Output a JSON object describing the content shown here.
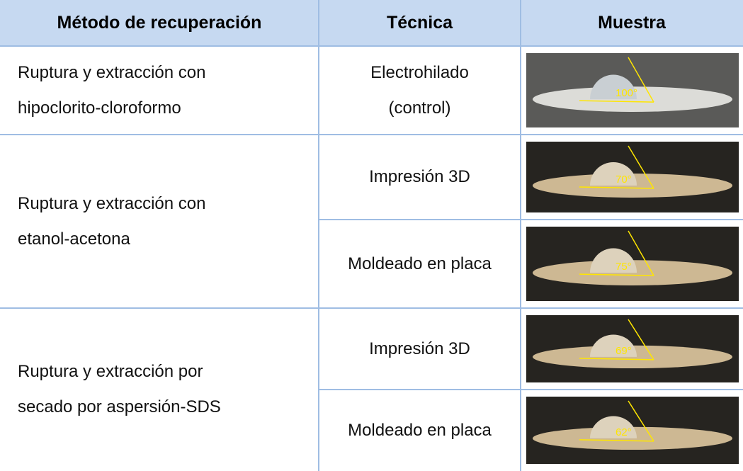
{
  "table": {
    "header": [
      "Método de recuperación",
      "Técnica",
      "Muestra"
    ],
    "rows": [
      {
        "method": [
          "Ruptura y extracción con",
          "hipoclorito-cloroformo"
        ],
        "samples": [
          {
            "technique": [
              "Electrohilado",
              "(control)"
            ],
            "angle": "100°"
          }
        ]
      },
      {
        "method": [
          "Ruptura y extracción con",
          "etanol-acetona"
        ],
        "samples": [
          {
            "technique": [
              "Impresión 3D"
            ],
            "angle": "70°"
          },
          {
            "technique": [
              "Moldeado en placa"
            ],
            "angle": "75°"
          }
        ]
      },
      {
        "method": [
          "Ruptura y extracción por",
          "secado por aspersión-SDS"
        ],
        "samples": [
          {
            "technique": [
              "Impresión 3D"
            ],
            "angle": "69°"
          },
          {
            "technique": [
              "Moldeado en placa"
            ],
            "angle": "62°"
          }
        ]
      }
    ]
  }
}
